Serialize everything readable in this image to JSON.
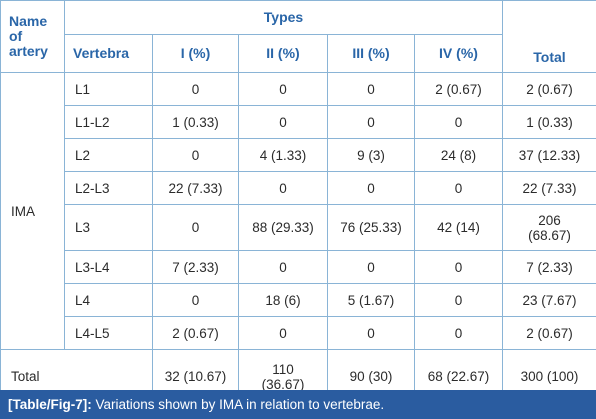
{
  "header": {
    "name_of_artery": "Name of artery",
    "types": "Types",
    "vertebra": "Vertebra",
    "type_i": "I (%)",
    "type_ii": "II (%)",
    "type_iii": "III (%)",
    "type_iv": "IV (%)",
    "total": "Total"
  },
  "artery": "IMA",
  "rows": [
    {
      "vertebra": "L1",
      "i": "0",
      "ii": "0",
      "iii": "0",
      "iv": "2 (0.67)",
      "total": "2 (0.67)"
    },
    {
      "vertebra": "L1-L2",
      "i": "1 (0.33)",
      "ii": "0",
      "iii": "0",
      "iv": "0",
      "total": "1 (0.33)"
    },
    {
      "vertebra": "L2",
      "i": "0",
      "ii": "4 (1.33)",
      "iii": "9 (3)",
      "iv": "24 (8)",
      "total": "37 (12.33)"
    },
    {
      "vertebra": "L2-L3",
      "i": "22 (7.33)",
      "ii": "0",
      "iii": "0",
      "iv": "0",
      "total": "22 (7.33)"
    },
    {
      "vertebra": "L3",
      "i": "0",
      "ii": "88 (29.33)",
      "iii": "76 (25.33)",
      "iv": "42 (14)",
      "total": "206 (68.67)"
    },
    {
      "vertebra": "L3-L4",
      "i": "7 (2.33)",
      "ii": "0",
      "iii": "0",
      "iv": "0",
      "total": "7 (2.33)"
    },
    {
      "vertebra": "L4",
      "i": "0",
      "ii": "18 (6)",
      "iii": "5 (1.67)",
      "iv": "0",
      "total": "23 (7.67)"
    },
    {
      "vertebra": "L4-L5",
      "i": "2 (0.67)",
      "ii": "0",
      "iii": "0",
      "iv": "0",
      "total": "2 (0.67)"
    }
  ],
  "total_row": {
    "label": "Total",
    "i": "32 (10.67)",
    "ii": "110 (36.67)",
    "iii": "90 (30)",
    "iv": "68 (22.67)",
    "total": "300 (100)"
  },
  "caption": {
    "ref": "[Table/Fig-7]:",
    "text": "Variations shown by IMA in relation to vertebrae."
  },
  "colors": {
    "header_text": "#2a66a8",
    "border": "#8ab4d6",
    "caption_bg": "#2a5ca0"
  }
}
